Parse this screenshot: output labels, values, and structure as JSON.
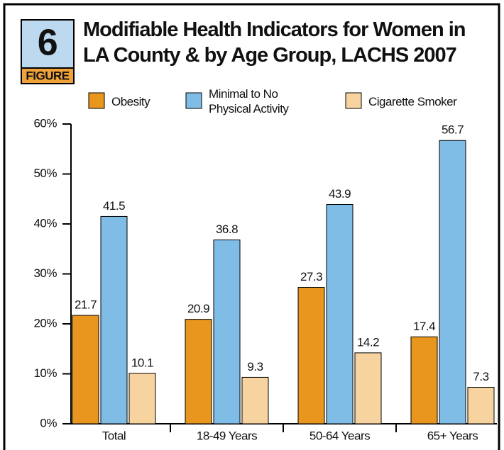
{
  "chart_data": {
    "type": "bar",
    "figure_number": "6",
    "figure_label": "FIGURE",
    "title": "Modifiable Health Indicators for Women in LA County & by Age Group, LACHS 2007",
    "categories": [
      "Total",
      "18-49 Years",
      "50-64 Years",
      "65+ Years"
    ],
    "series": [
      {
        "name": "Obesity",
        "color": "#e8961e",
        "values": [
          21.7,
          20.9,
          27.3,
          17.4
        ]
      },
      {
        "name": "Minimal to No Physical Activity",
        "color": "#7fbce6",
        "values": [
          41.5,
          36.8,
          43.9,
          56.7
        ]
      },
      {
        "name": "Cigarette Smoker",
        "color": "#f7d3a0",
        "values": [
          10.1,
          9.3,
          14.2,
          7.3
        ]
      }
    ],
    "ylim": [
      0,
      60
    ],
    "yticks": [
      {
        "value": 0,
        "label": "0%"
      },
      {
        "value": 10,
        "label": "10%"
      },
      {
        "value": 20,
        "label": "20%"
      },
      {
        "value": 30,
        "label": "30%"
      },
      {
        "value": 40,
        "label": "40%"
      },
      {
        "value": 50,
        "label": "50%"
      },
      {
        "value": 60,
        "label": "60%"
      }
    ],
    "grid": false
  }
}
